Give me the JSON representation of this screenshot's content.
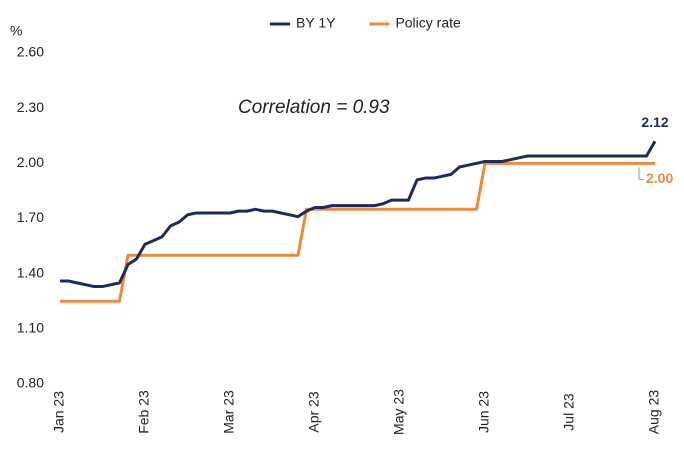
{
  "chart_data": {
    "type": "line",
    "y_unit": "%",
    "annotation": "Correlation = 0.93",
    "categories": [
      "Jan 23",
      null,
      null,
      null,
      null,
      null,
      null,
      null,
      null,
      null,
      "Feb 23",
      null,
      null,
      null,
      null,
      null,
      null,
      null,
      null,
      null,
      "Mar 23",
      null,
      null,
      null,
      null,
      null,
      null,
      null,
      null,
      null,
      "Apr 23",
      null,
      null,
      null,
      null,
      null,
      null,
      null,
      null,
      null,
      "May 23",
      null,
      null,
      null,
      null,
      null,
      null,
      null,
      null,
      null,
      "Jun 23",
      null,
      null,
      null,
      null,
      null,
      null,
      null,
      null,
      null,
      "Jul 23",
      null,
      null,
      null,
      null,
      null,
      null,
      null,
      null,
      null,
      "Aug 23"
    ],
    "series": [
      {
        "name": "BY 1Y",
        "color": "#1c2b5e",
        "values": [
          1.36,
          1.36,
          1.35,
          1.34,
          1.33,
          1.33,
          1.34,
          1.35,
          1.45,
          1.48,
          1.56,
          1.58,
          1.6,
          1.66,
          1.68,
          1.72,
          1.73,
          1.73,
          1.73,
          1.73,
          1.73,
          1.74,
          1.74,
          1.75,
          1.74,
          1.74,
          1.73,
          1.72,
          1.71,
          1.74,
          1.76,
          1.76,
          1.77,
          1.77,
          1.77,
          1.77,
          1.77,
          1.77,
          1.78,
          1.8,
          1.8,
          1.8,
          1.91,
          1.92,
          1.92,
          1.93,
          1.94,
          1.98,
          1.99,
          2.0,
          2.01,
          2.01,
          2.01,
          2.02,
          2.03,
          2.04,
          2.04,
          2.04,
          2.04,
          2.04,
          2.04,
          2.04,
          2.04,
          2.04,
          2.04,
          2.04,
          2.04,
          2.04,
          2.04,
          2.04,
          2.12
        ],
        "value_labels": [
          null,
          null,
          null,
          null,
          null,
          null,
          null,
          null,
          null,
          null,
          null,
          null,
          null,
          null,
          null,
          null,
          null,
          null,
          null,
          null,
          null,
          null,
          null,
          null,
          null,
          null,
          null,
          null,
          null,
          null,
          null,
          null,
          null,
          null,
          null,
          null,
          null,
          null,
          null,
          null,
          null,
          null,
          null,
          null,
          null,
          null,
          null,
          null,
          null,
          null,
          null,
          null,
          null,
          null,
          null,
          null,
          null,
          null,
          null,
          null,
          null,
          null,
          null,
          null,
          null,
          null,
          null,
          null,
          null,
          null,
          "2.12"
        ]
      },
      {
        "name": "Policy rate",
        "color": "#f0893a",
        "values": [
          1.25,
          1.25,
          1.25,
          1.25,
          1.25,
          1.25,
          1.25,
          1.25,
          1.5,
          1.5,
          1.5,
          1.5,
          1.5,
          1.5,
          1.5,
          1.5,
          1.5,
          1.5,
          1.5,
          1.5,
          1.5,
          1.5,
          1.5,
          1.5,
          1.5,
          1.5,
          1.5,
          1.5,
          1.5,
          1.75,
          1.75,
          1.75,
          1.75,
          1.75,
          1.75,
          1.75,
          1.75,
          1.75,
          1.75,
          1.75,
          1.75,
          1.75,
          1.75,
          1.75,
          1.75,
          1.75,
          1.75,
          1.75,
          1.75,
          1.75,
          2.0,
          2.0,
          2.0,
          2.0,
          2.0,
          2.0,
          2.0,
          2.0,
          2.0,
          2.0,
          2.0,
          2.0,
          2.0,
          2.0,
          2.0,
          2.0,
          2.0,
          2.0,
          2.0,
          2.0,
          2.0
        ],
        "value_labels": [
          null,
          null,
          null,
          null,
          null,
          null,
          null,
          null,
          null,
          null,
          null,
          null,
          null,
          null,
          null,
          null,
          null,
          null,
          null,
          null,
          null,
          null,
          null,
          null,
          null,
          null,
          null,
          null,
          null,
          null,
          null,
          null,
          null,
          null,
          null,
          null,
          null,
          null,
          null,
          null,
          null,
          null,
          null,
          null,
          null,
          null,
          null,
          null,
          null,
          null,
          null,
          null,
          null,
          null,
          null,
          null,
          null,
          null,
          null,
          null,
          null,
          null,
          null,
          null,
          null,
          null,
          null,
          null,
          null,
          null,
          "2.00"
        ]
      }
    ],
    "ylim": [
      0.8,
      2.6
    ],
    "yticks": [
      {
        "value": 0.8,
        "label": "0.80"
      },
      {
        "value": 1.1,
        "label": "1.10"
      },
      {
        "value": 1.4,
        "label": "1.40"
      },
      {
        "value": 1.7,
        "label": "1.70"
      },
      {
        "value": 2.0,
        "label": "2.00"
      },
      {
        "value": 2.3,
        "label": "2.30"
      },
      {
        "value": 2.6,
        "label": "2.60"
      }
    ],
    "grid": false,
    "legend": "top"
  }
}
